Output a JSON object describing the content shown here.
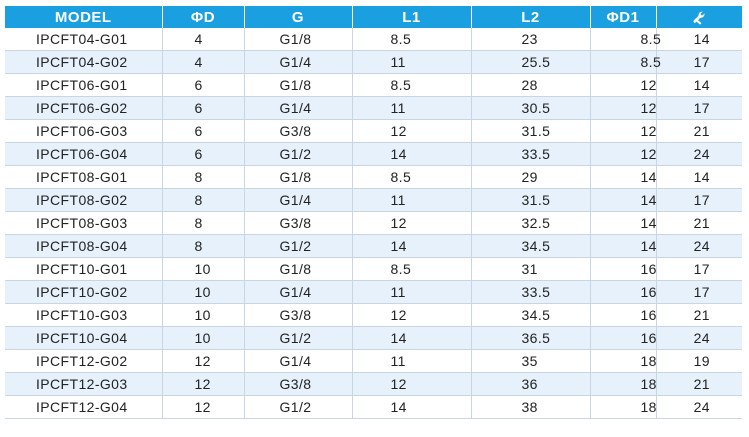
{
  "table": {
    "headers": [
      {
        "key": "model",
        "label": "MODEL"
      },
      {
        "key": "d",
        "label": "ΦD"
      },
      {
        "key": "g",
        "label": "G"
      },
      {
        "key": "l1",
        "label": "L1"
      },
      {
        "key": "l2",
        "label": "L2"
      },
      {
        "key": "d1",
        "label": "ΦD1"
      },
      {
        "key": "wrench",
        "label": "",
        "icon": "wrench-icon"
      }
    ],
    "header_color": "#1aa0e0",
    "alt_row_color": "#e6f1fb",
    "rows": [
      [
        "IPCFT04-G01",
        "4",
        "G1/8",
        "8.5",
        "23",
        "8.5",
        "14"
      ],
      [
        "IPCFT04-G02",
        "4",
        "G1/4",
        "11",
        "25.5",
        "8.5",
        "17"
      ],
      [
        "IPCFT06-G01",
        "6",
        "G1/8",
        "8.5",
        "28",
        "12",
        "14"
      ],
      [
        "IPCFT06-G02",
        "6",
        "G1/4",
        "11",
        "30.5",
        "12",
        "17"
      ],
      [
        "IPCFT06-G03",
        "6",
        "G3/8",
        "12",
        "31.5",
        "12",
        "21"
      ],
      [
        "IPCFT06-G04",
        "6",
        "G1/2",
        "14",
        "33.5",
        "12",
        "24"
      ],
      [
        "IPCFT08-G01",
        "8",
        "G1/8",
        "8.5",
        "29",
        "14",
        "14"
      ],
      [
        "IPCFT08-G02",
        "8",
        "G1/4",
        "11",
        "31.5",
        "14",
        "17"
      ],
      [
        "IPCFT08-G03",
        "8",
        "G3/8",
        "12",
        "32.5",
        "14",
        "21"
      ],
      [
        "IPCFT08-G04",
        "8",
        "G1/2",
        "14",
        "34.5",
        "14",
        "24"
      ],
      [
        "IPCFT10-G01",
        "10",
        "G1/8",
        "8.5",
        "31",
        "16",
        "17"
      ],
      [
        "IPCFT10-G02",
        "10",
        "G1/4",
        "11",
        "33.5",
        "16",
        "17"
      ],
      [
        "IPCFT10-G03",
        "10",
        "G3/8",
        "12",
        "34.5",
        "16",
        "21"
      ],
      [
        "IPCFT10-G04",
        "10",
        "G1/2",
        "14",
        "36.5",
        "16",
        "24"
      ],
      [
        "IPCFT12-G02",
        "12",
        "G1/4",
        "11",
        "35",
        "18",
        "19"
      ],
      [
        "IPCFT12-G03",
        "12",
        "G3/8",
        "12",
        "36",
        "18",
        "21"
      ],
      [
        "IPCFT12-G04",
        "12",
        "G1/2",
        "14",
        "38",
        "18",
        "24"
      ]
    ]
  }
}
